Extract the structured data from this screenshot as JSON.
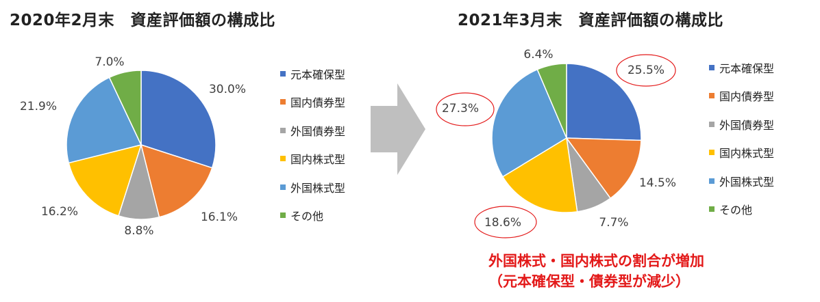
{
  "chart_data": [
    {
      "type": "pie",
      "title": "2020年2月末　資産評価額の構成比",
      "categories": [
        "元本確保型",
        "国内債券型",
        "外国債券型",
        "国内株式型",
        "外国株式型",
        "その他"
      ],
      "values": [
        30.0,
        16.1,
        8.8,
        16.2,
        21.9,
        7.0
      ],
      "labels": [
        "30.0%",
        "16.1%",
        "8.8%",
        "16.2%",
        "21.9%",
        "7.0%"
      ],
      "legend_position": "right"
    },
    {
      "type": "pie",
      "title": "2021年3月末　資産評価額の構成比",
      "categories": [
        "元本確保型",
        "国内債券型",
        "外国債券型",
        "国内株式型",
        "外国株式型",
        "その他"
      ],
      "values": [
        25.5,
        14.5,
        7.7,
        18.6,
        27.3,
        6.4
      ],
      "labels": [
        "25.5%",
        "14.5%",
        "7.7%",
        "18.6%",
        "27.3%",
        "6.4%"
      ],
      "highlighted": [
        "25.5%",
        "18.6%",
        "27.3%"
      ],
      "legend_position": "right"
    }
  ],
  "colors": [
    "#4472c4",
    "#ed7d31",
    "#a5a5a5",
    "#ffc000",
    "#5b9bd5",
    "#70ad47"
  ],
  "highlight_color": "#e31919",
  "arrow_color": "#bfbfbf",
  "annotation": {
    "line1": "外国株式・国内株式の割合が増加",
    "line2": "（元本確保型・債券型が減少）"
  }
}
